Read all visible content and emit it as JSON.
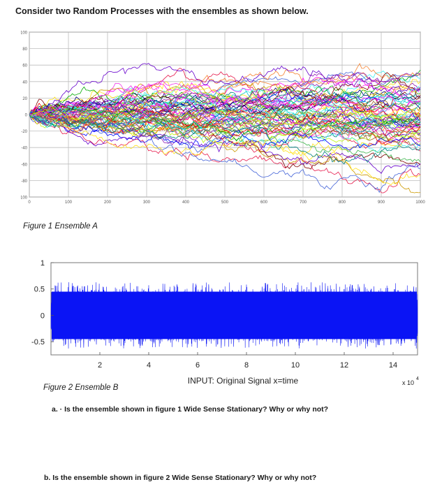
{
  "heading": "Consider two Random Processes with the ensembles as shown below.",
  "figure1": {
    "caption": "Figure 1 Ensemble A",
    "y_ticks": [
      "100",
      "80",
      "60",
      "40",
      "20",
      "0",
      "-20",
      "-40",
      "-60",
      "-80",
      "-100"
    ],
    "x_ticks": [
      "0",
      "100",
      "200",
      "300",
      "400",
      "500",
      "600",
      "700",
      "800",
      "900",
      "1000"
    ]
  },
  "figure2": {
    "caption": "Figure 2 Ensemble B",
    "y_ticks": [
      "1",
      "0.5",
      "0",
      "-0.5"
    ],
    "x_ticks": [
      "2",
      "4",
      "6",
      "8",
      "10",
      "12",
      "14"
    ],
    "x_label": "INPUT: Original Signal  x=time",
    "exponent": "x 10",
    "exponent_power": "4",
    "signal_color": "#0a14f5"
  },
  "questions": {
    "a": "a. · Is the ensemble shown in figure 1 Wide Sense Stationary? Why or why not?",
    "b": "b.  Is the ensemble shown in figure 2 Wide Sense Stationary? Why or why not?"
  },
  "chart_data": [
    {
      "type": "line",
      "title": "",
      "xlabel": "",
      "ylabel": "",
      "xlim": [
        0,
        1000
      ],
      "ylim": [
        -100,
        100
      ],
      "grid": true,
      "description_series": "many random-walk realizations starting at 0, spread growing with time (approx ±40 at t=1000 envelope to ±90)"
    },
    {
      "type": "line",
      "title": "",
      "xlabel": "INPUT: Original Signal  x=time",
      "ylabel": "",
      "xlim": [
        0,
        150000
      ],
      "ylim": [
        -0.75,
        1
      ],
      "grid": false,
      "description_series": "dense noise signal filling approx -0.6 to 0.65 across entire time range"
    }
  ]
}
